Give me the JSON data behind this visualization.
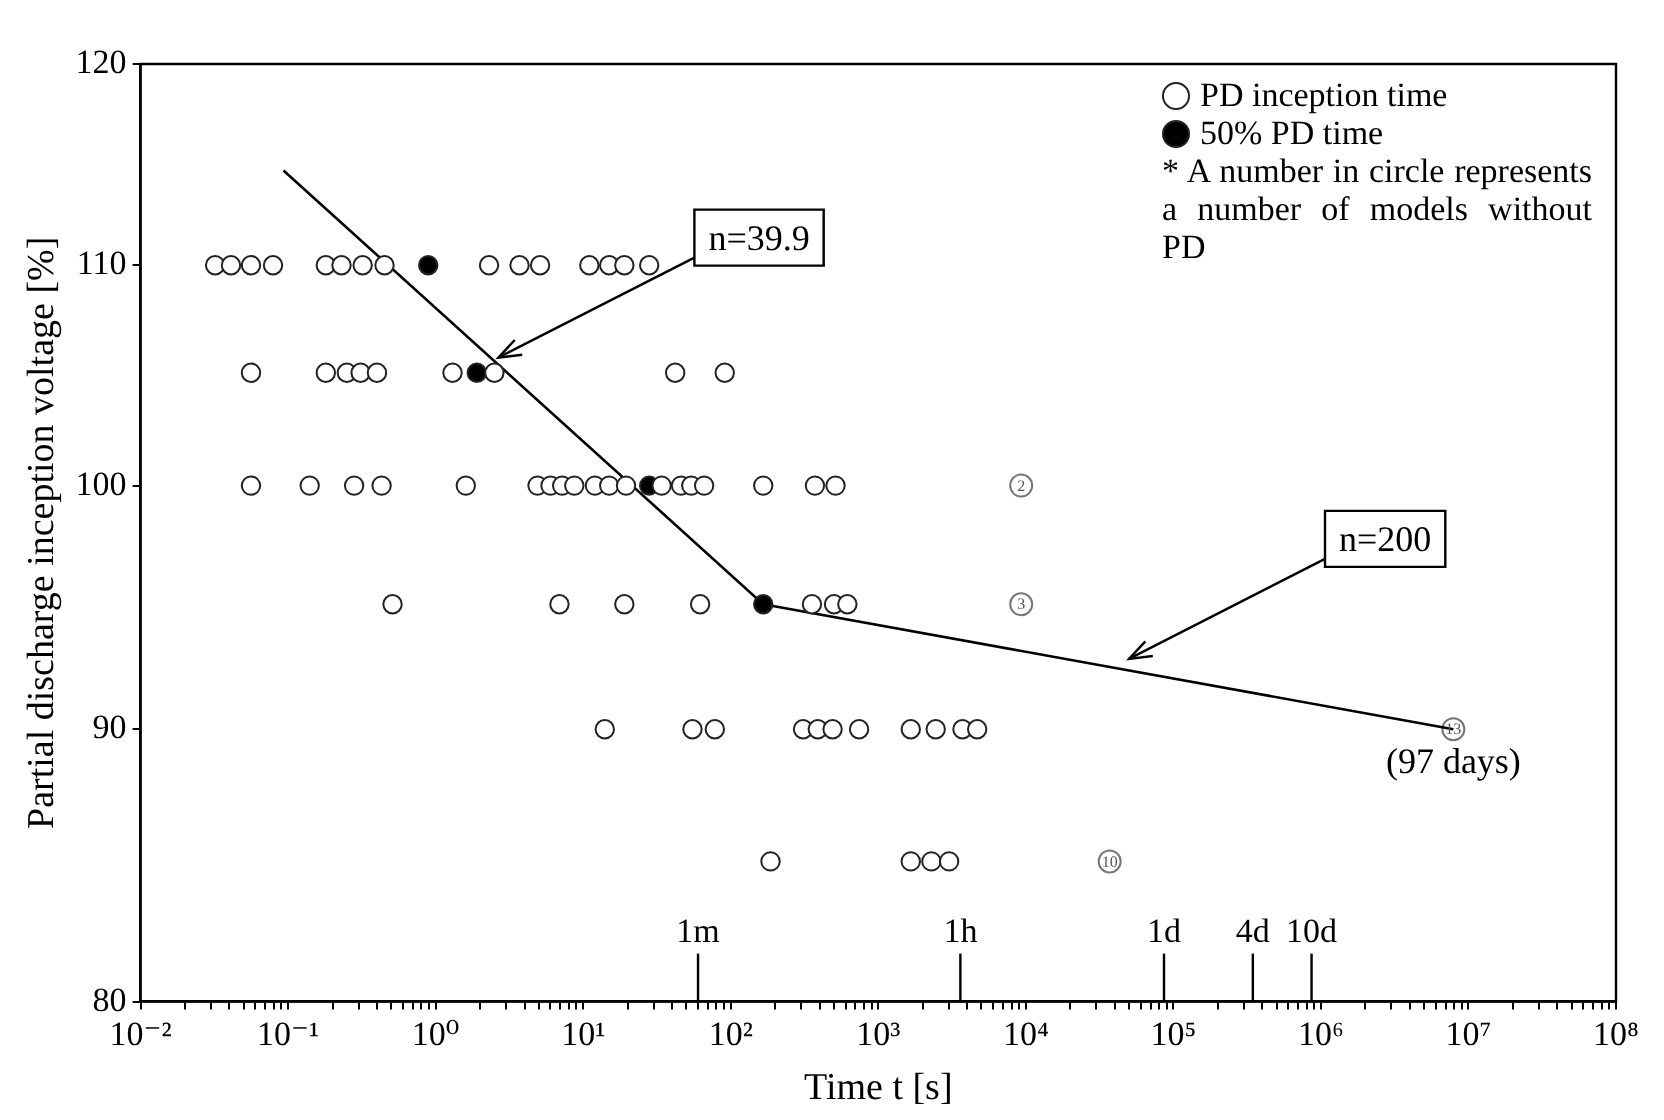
{
  "chart_data": {
    "type": "scatter",
    "xlabel": "Time t [s]",
    "ylabel": "Partial discharge inception voltage [%]",
    "log": "xy",
    "legend": "top right",
    "xlim": [
      0.01,
      100000000
    ],
    "ylim": [
      80,
      120
    ],
    "xticks": [
      {
        "value": 0.01,
        "label": "10⁻²"
      },
      {
        "value": 0.02,
        "label": null
      },
      {
        "value": 0.03,
        "label": null
      },
      {
        "value": 0.04,
        "label": null
      },
      {
        "value": 0.05,
        "label": null
      },
      {
        "value": 0.06,
        "label": null
      },
      {
        "value": 0.07,
        "label": null
      },
      {
        "value": 0.08,
        "label": null
      },
      {
        "value": 0.09,
        "label": null
      },
      {
        "value": 0.1,
        "label": "10⁻¹"
      },
      {
        "value": 0.2,
        "label": null
      },
      {
        "value": 0.3,
        "label": null
      },
      {
        "value": 0.4,
        "label": null
      },
      {
        "value": 0.5,
        "label": null
      },
      {
        "value": 0.6,
        "label": null
      },
      {
        "value": 0.7,
        "label": null
      },
      {
        "value": 0.8,
        "label": null
      },
      {
        "value": 0.9,
        "label": null
      },
      {
        "value": 1,
        "label": "10⁰"
      },
      {
        "value": 2,
        "label": null
      },
      {
        "value": 3,
        "label": null
      },
      {
        "value": 4,
        "label": null
      },
      {
        "value": 5,
        "label": null
      },
      {
        "value": 6,
        "label": null
      },
      {
        "value": 7,
        "label": null
      },
      {
        "value": 8,
        "label": null
      },
      {
        "value": 9,
        "label": null
      },
      {
        "value": 10,
        "label": "10¹"
      },
      {
        "value": 20,
        "label": null
      },
      {
        "value": 30,
        "label": null
      },
      {
        "value": 40,
        "label": null
      },
      {
        "value": 50,
        "label": null
      },
      {
        "value": 60,
        "label": null
      },
      {
        "value": 70,
        "label": null
      },
      {
        "value": 80,
        "label": null
      },
      {
        "value": 90,
        "label": null
      },
      {
        "value": 100,
        "label": "10²"
      },
      {
        "value": 200,
        "label": null
      },
      {
        "value": 300,
        "label": null
      },
      {
        "value": 400,
        "label": null
      },
      {
        "value": 500,
        "label": null
      },
      {
        "value": 600,
        "label": null
      },
      {
        "value": 700,
        "label": null
      },
      {
        "value": 800,
        "label": null
      },
      {
        "value": 900,
        "label": null
      },
      {
        "value": 1000,
        "label": "10³"
      },
      {
        "value": 2000,
        "label": null
      },
      {
        "value": 3000,
        "label": null
      },
      {
        "value": 4000,
        "label": null
      },
      {
        "value": 5000,
        "label": null
      },
      {
        "value": 6000,
        "label": null
      },
      {
        "value": 7000,
        "label": null
      },
      {
        "value": 8000,
        "label": null
      },
      {
        "value": 9000,
        "label": null
      },
      {
        "value": 10000,
        "label": "10⁴"
      },
      {
        "value": 20000,
        "label": null
      },
      {
        "value": 30000,
        "label": null
      },
      {
        "value": 40000,
        "label": null
      },
      {
        "value": 50000,
        "label": null
      },
      {
        "value": 60000,
        "label": null
      },
      {
        "value": 70000,
        "label": null
      },
      {
        "value": 80000,
        "label": null
      },
      {
        "value": 90000,
        "label": null
      },
      {
        "value": 100000,
        "label": "10⁵"
      },
      {
        "value": 200000,
        "label": null
      },
      {
        "value": 300000,
        "label": null
      },
      {
        "value": 400000,
        "label": null
      },
      {
        "value": 500000,
        "label": null
      },
      {
        "value": 600000,
        "label": null
      },
      {
        "value": 700000,
        "label": null
      },
      {
        "value": 800000,
        "label": null
      },
      {
        "value": 900000,
        "label": null
      },
      {
        "value": 1000000,
        "label": "10⁶"
      },
      {
        "value": 2000000,
        "label": null
      },
      {
        "value": 3000000,
        "label": null
      },
      {
        "value": 4000000,
        "label": null
      },
      {
        "value": 5000000,
        "label": null
      },
      {
        "value": 6000000,
        "label": null
      },
      {
        "value": 7000000,
        "label": null
      },
      {
        "value": 8000000,
        "label": null
      },
      {
        "value": 9000000,
        "label": null
      },
      {
        "value": 10000000,
        "label": "10⁷"
      },
      {
        "value": 20000000,
        "label": null
      },
      {
        "value": 30000000,
        "label": null
      },
      {
        "value": 40000000,
        "label": null
      },
      {
        "value": 50000000,
        "label": null
      },
      {
        "value": 60000000,
        "label": null
      },
      {
        "value": 70000000,
        "label": null
      },
      {
        "value": 80000000,
        "label": null
      },
      {
        "value": 90000000,
        "label": null
      },
      {
        "value": 100000000,
        "label": "10⁸"
      }
    ],
    "yticks": [
      80,
      90,
      100,
      110,
      120
    ],
    "series": [
      {
        "name": "PD inception time",
        "marker": "circle",
        "color": "#ffffff",
        "x": [
          0.032,
          0.041,
          0.056,
          0.079,
          0.18,
          0.23,
          0.32,
          0.45,
          2.3,
          3.7,
          5.1,
          11,
          15,
          19,
          28,
          0.056,
          0.18,
          0.25,
          0.31,
          0.4,
          1.3,
          2.5,
          42,
          91,
          0.056,
          0.14,
          0.28,
          0.43,
          1.6,
          4.9,
          6,
          7.2,
          8.7,
          12,
          15,
          19.5,
          34,
          46,
          54,
          66,
          166,
          372,
          513,
          0.51,
          6.9,
          19,
          62,
          355,
          501,
          617,
          14,
          55,
          78,
          309,
          389,
          490,
          741,
          1660,
          2450,
          3720,
          4680,
          186,
          1660,
          2290,
          3020
        ],
        "values": [
          110,
          110,
          110,
          110,
          110,
          110,
          110,
          110,
          110,
          110,
          110,
          110,
          110,
          110,
          110,
          105,
          105,
          105,
          105,
          105,
          105,
          105,
          105,
          105,
          100,
          100,
          100,
          100,
          100,
          100,
          100,
          100,
          100,
          100,
          100,
          100,
          100,
          100,
          100,
          100,
          100,
          100,
          100,
          95,
          95,
          95,
          95,
          95,
          95,
          95,
          90,
          90,
          90,
          90,
          90,
          90,
          90,
          90,
          90,
          90,
          90,
          85,
          85,
          85,
          85
        ]
      },
      {
        "name": "50% PD time",
        "marker": "circle",
        "color": "#000000",
        "x": [
          0.89,
          1.9,
          28,
          166
        ],
        "values": [
          110,
          105,
          100,
          95
        ]
      },
      {
        "type": "line",
        "marker": "none",
        "line_style": "solid",
        "color": "#000000",
        "x": [
          0.093,
          166,
          7900000
        ],
        "values": [
          114.6,
          95,
          90
        ]
      },
      {
        "marker": "circle",
        "color": "#ffffff",
        "x": [
          9300,
          9300,
          7900000,
          37000
        ],
        "values": [
          100,
          95,
          90,
          85
        ]
      }
    ],
    "ref_lines": [
      {
        "axis": "x",
        "value": 60,
        "label": "1m"
      },
      {
        "axis": "x",
        "value": 3600,
        "label": "1h"
      },
      {
        "axis": "x",
        "value": 86400,
        "label": "1d"
      },
      {
        "axis": "x",
        "value": 345600,
        "label": "4d"
      },
      {
        "axis": "x",
        "value": 864000,
        "label": "10d"
      }
    ],
    "annotations": [
      {
        "text": "2",
        "x": 9300,
        "y": 100
      },
      {
        "text": "3",
        "x": 9300,
        "y": 95
      },
      {
        "text": "13",
        "x": 7900000,
        "y": 90
      },
      {
        "text": "10",
        "x": 37000,
        "y": 85
      },
      {
        "text": "n=39.9",
        "x": 2.5,
        "y": 105.6
      },
      {
        "text": "n=200",
        "x": 47000,
        "y": 92.7
      },
      {
        "text": "(97 days)",
        "x": 7900000,
        "y": 90
      },
      "* A number in circle represents a number of models without PD"
    ]
  }
}
